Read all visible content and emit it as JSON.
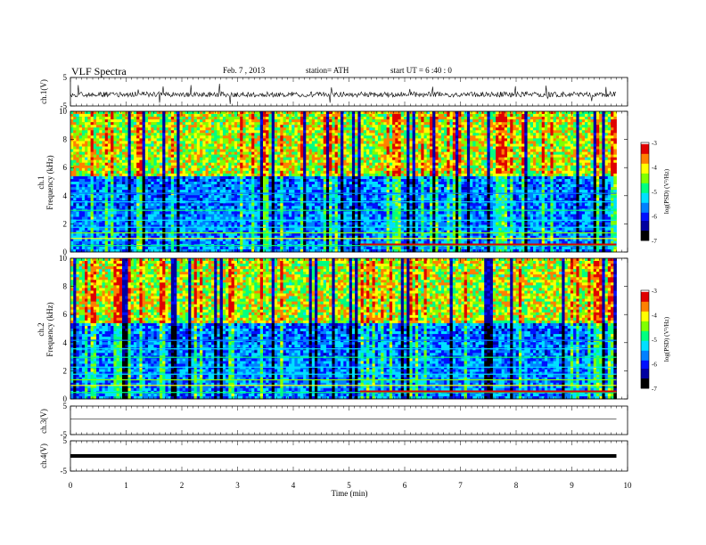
{
  "header": {
    "title": "VLF  Spectra",
    "date": "Feb. 7  , 2013",
    "station": "station= ATH",
    "start": "start  UT  =   6  :40 : 0"
  },
  "chart_data": [
    {
      "type": "line",
      "name": "ch.1 waveform",
      "ylabel": "ch.1(V)",
      "ylim": [
        -5,
        5
      ],
      "y_ticks": [
        "5",
        "-5"
      ],
      "x_range_min": [
        0,
        9.8
      ]
    },
    {
      "type": "heatmap",
      "name": "ch.1 spectrogram",
      "ylabel": "Frequency (kHz)",
      "panel_label": "ch.1",
      "ylim": [
        0,
        10
      ],
      "y_ticks": [
        "0",
        "2",
        "4",
        "6",
        "8",
        "10"
      ],
      "x_range_min": [
        0,
        9.8
      ],
      "colorbar": {
        "label": "log(PSD) (V²/Hz)",
        "range": [
          -7,
          -3
        ],
        "ticks": [
          "-3",
          "-4",
          "-5",
          "-6",
          "-7"
        ]
      }
    },
    {
      "type": "heatmap",
      "name": "ch.2 spectrogram",
      "ylabel": "Frequency (kHz)",
      "panel_label": "ch.2",
      "ylim": [
        0,
        10
      ],
      "y_ticks": [
        "0",
        "2",
        "4",
        "6",
        "8",
        "10"
      ],
      "x_range_min": [
        0,
        9.8
      ],
      "colorbar": {
        "label": "log(PSD) (V²/Hz)",
        "range": [
          -7,
          -3
        ],
        "ticks": [
          "-3",
          "-4",
          "-5",
          "-6",
          "-7"
        ]
      }
    },
    {
      "type": "line",
      "name": "ch.3 waveform",
      "ylabel": "ch.3(V)",
      "ylim": [
        -5,
        5
      ],
      "y_ticks": [
        "5",
        "-5"
      ]
    },
    {
      "type": "line",
      "name": "ch.4 waveform",
      "ylabel": "ch.4(V)",
      "ylim": [
        -5,
        5
      ],
      "y_ticks": [
        "5",
        "-5"
      ]
    }
  ],
  "xaxis": {
    "label": "Time  (min)",
    "range": [
      0,
      10
    ],
    "ticks": [
      "0",
      "1",
      "2",
      "3",
      "4",
      "5",
      "6",
      "7",
      "8",
      "9",
      "10"
    ]
  },
  "colors": {
    "colormap": [
      "#000000",
      "#0000a0",
      "#0010ff",
      "#0080ff",
      "#00e0ff",
      "#00ff80",
      "#80ff00",
      "#ffff00",
      "#ff8000",
      "#e00000",
      "#ffffff"
    ]
  }
}
